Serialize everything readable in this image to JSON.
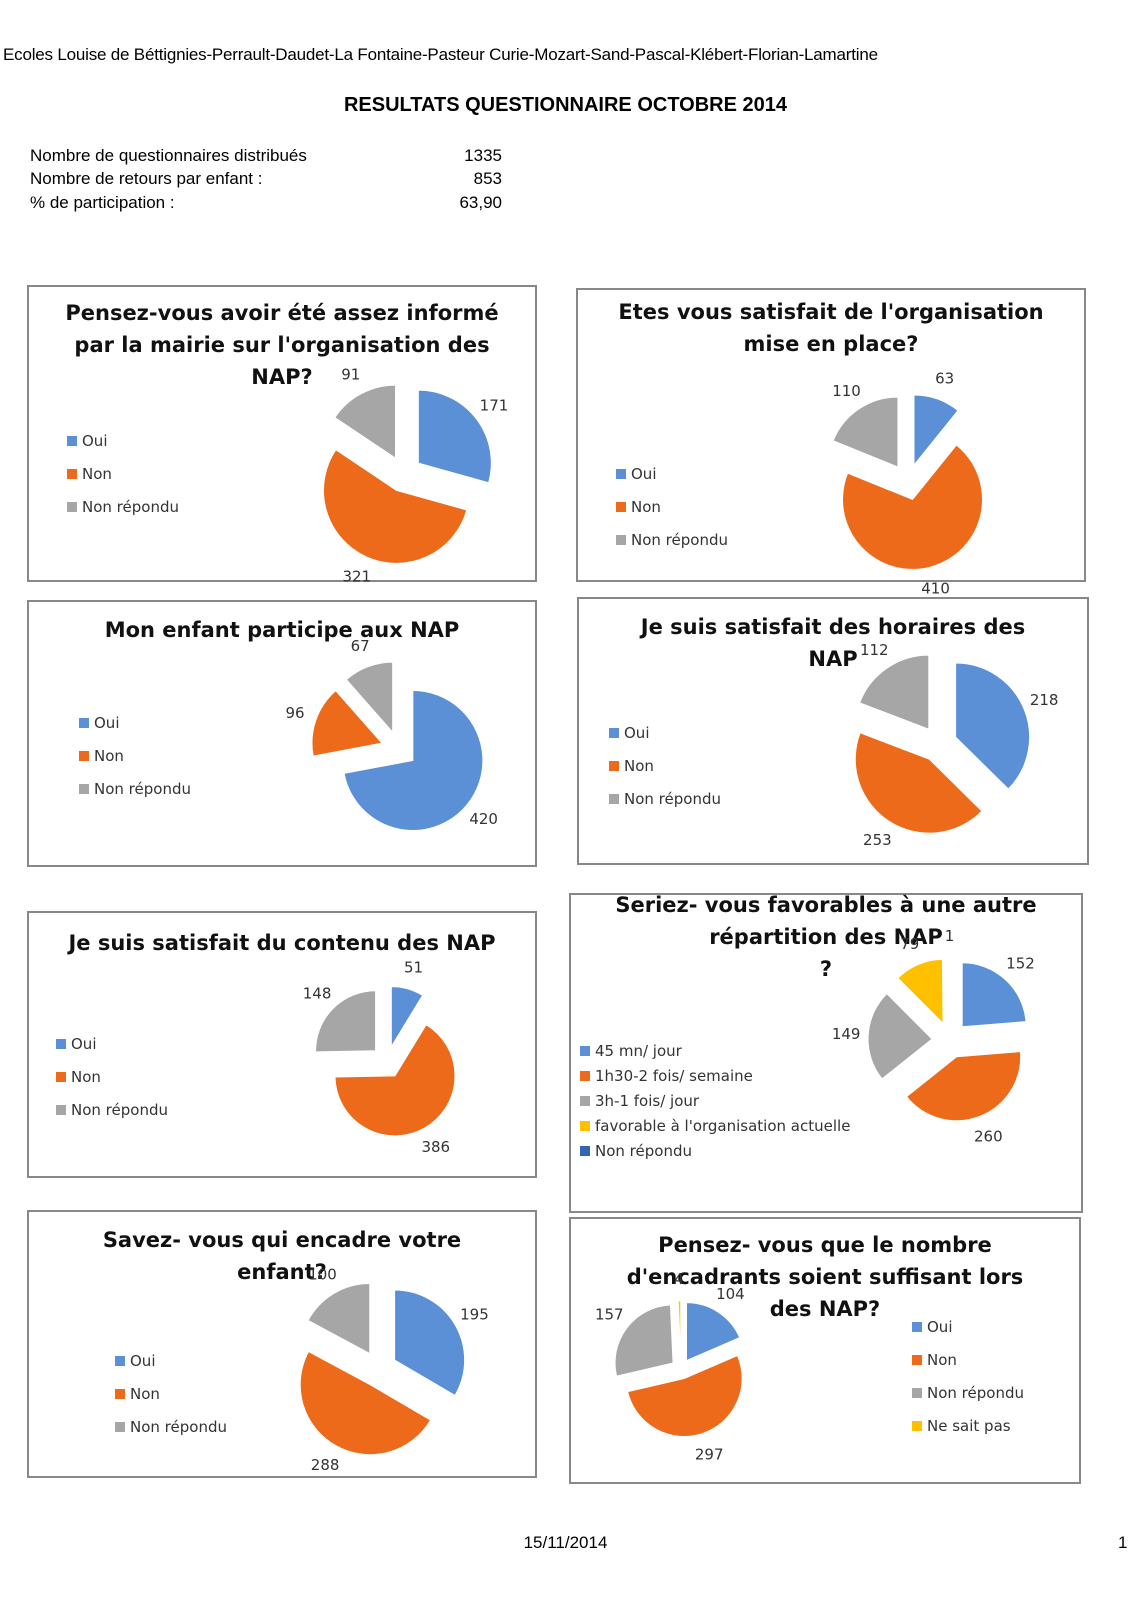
{
  "header": {
    "schools": "Ecoles Louise de Béttignies-Perrault-Daudet-La Fontaine-Pasteur Curie-Mozart-Sand-Pascal-Klébert-Florian-Lamartine",
    "title": "RESULTATS QUESTIONNAIRE OCTOBRE 2014"
  },
  "stats": [
    {
      "label": "Nombre de questionnaires distribués",
      "value": "1335"
    },
    {
      "label": "Nombre de retours par enfant :",
      "value": "853"
    },
    {
      "label": "% de participation :",
      "value": "63,90"
    }
  ],
  "colors": {
    "blue": "#5b8fd6",
    "orange": "#ee6a1b",
    "gray": "#a6a6a6",
    "yellow": "#ffc000",
    "darkblue": "#3464b4"
  },
  "chart_data": [
    {
      "type": "pie",
      "title_lines": [
        "Pensez-vous avoir été assez informé",
        "par la mairie sur l'organisation des",
        "NAP?"
      ],
      "categories": [
        "Oui",
        "Non",
        "Non répondu"
      ],
      "values": [
        171,
        321,
        91
      ],
      "colors": [
        "#5b8fd6",
        "#ee6a1b",
        "#a6a6a6"
      ],
      "legend_position": "left"
    },
    {
      "type": "pie",
      "title_lines": [
        "Etes vous satisfait de l'organisation",
        "mise en place?"
      ],
      "categories": [
        "Oui",
        "Non",
        "Non répondu"
      ],
      "values": [
        63,
        410,
        110
      ],
      "colors": [
        "#5b8fd6",
        "#ee6a1b",
        "#a6a6a6"
      ],
      "legend_position": "left"
    },
    {
      "type": "pie",
      "title_lines": [
        "Mon enfant participe aux NAP"
      ],
      "categories": [
        "Oui",
        "Non",
        "Non répondu"
      ],
      "values": [
        420,
        96,
        67
      ],
      "colors": [
        "#5b8fd6",
        "#ee6a1b",
        "#a6a6a6"
      ],
      "legend_position": "left"
    },
    {
      "type": "pie",
      "title_lines": [
        "Je suis satisfait des horaires des",
        "NAP"
      ],
      "categories": [
        "Oui",
        "Non",
        "Non répondu"
      ],
      "values": [
        218,
        253,
        112
      ],
      "colors": [
        "#5b8fd6",
        "#ee6a1b",
        "#a6a6a6"
      ],
      "legend_position": "left"
    },
    {
      "type": "pie",
      "title_lines": [
        "Je suis satisfait du contenu des NAP"
      ],
      "categories": [
        "Oui",
        "Non",
        "Non répondu"
      ],
      "values": [
        51,
        386,
        148
      ],
      "colors": [
        "#5b8fd6",
        "#ee6a1b",
        "#a6a6a6"
      ],
      "legend_position": "left"
    },
    {
      "type": "pie",
      "title_lines": [
        "Seriez- vous favorables à une autre",
        "répartition des NAP",
        "?"
      ],
      "categories": [
        "45 mn/ jour",
        "1h30-2 fois/ semaine",
        "3h-1 fois/ jour",
        "favorable à l'organisation actuelle",
        "Non répondu"
      ],
      "values": [
        152,
        260,
        149,
        79,
        1
      ],
      "colors": [
        "#5b8fd6",
        "#ee6a1b",
        "#a6a6a6",
        "#ffc000",
        "#3464b4"
      ],
      "legend_position": "bottom-left"
    },
    {
      "type": "pie",
      "title_lines": [
        "Savez- vous qui encadre votre",
        "enfant?"
      ],
      "categories": [
        "Oui",
        "Non",
        "Non répondu"
      ],
      "values": [
        195,
        288,
        100
      ],
      "colors": [
        "#5b8fd6",
        "#ee6a1b",
        "#a6a6a6"
      ],
      "legend_position": "left"
    },
    {
      "type": "pie",
      "title_lines": [
        "Pensez- vous que le nombre",
        "d'encadrants soient suffisant lors",
        "des NAP?"
      ],
      "categories": [
        "Oui",
        "Non",
        "Non répondu",
        "Ne sait pas"
      ],
      "values": [
        104,
        297,
        157,
        4
      ],
      "colors": [
        "#5b8fd6",
        "#ee6a1b",
        "#a6a6a6",
        "#ffc000"
      ],
      "legend_position": "right"
    }
  ],
  "footer": {
    "date": "15/11/2014",
    "page": "1"
  }
}
